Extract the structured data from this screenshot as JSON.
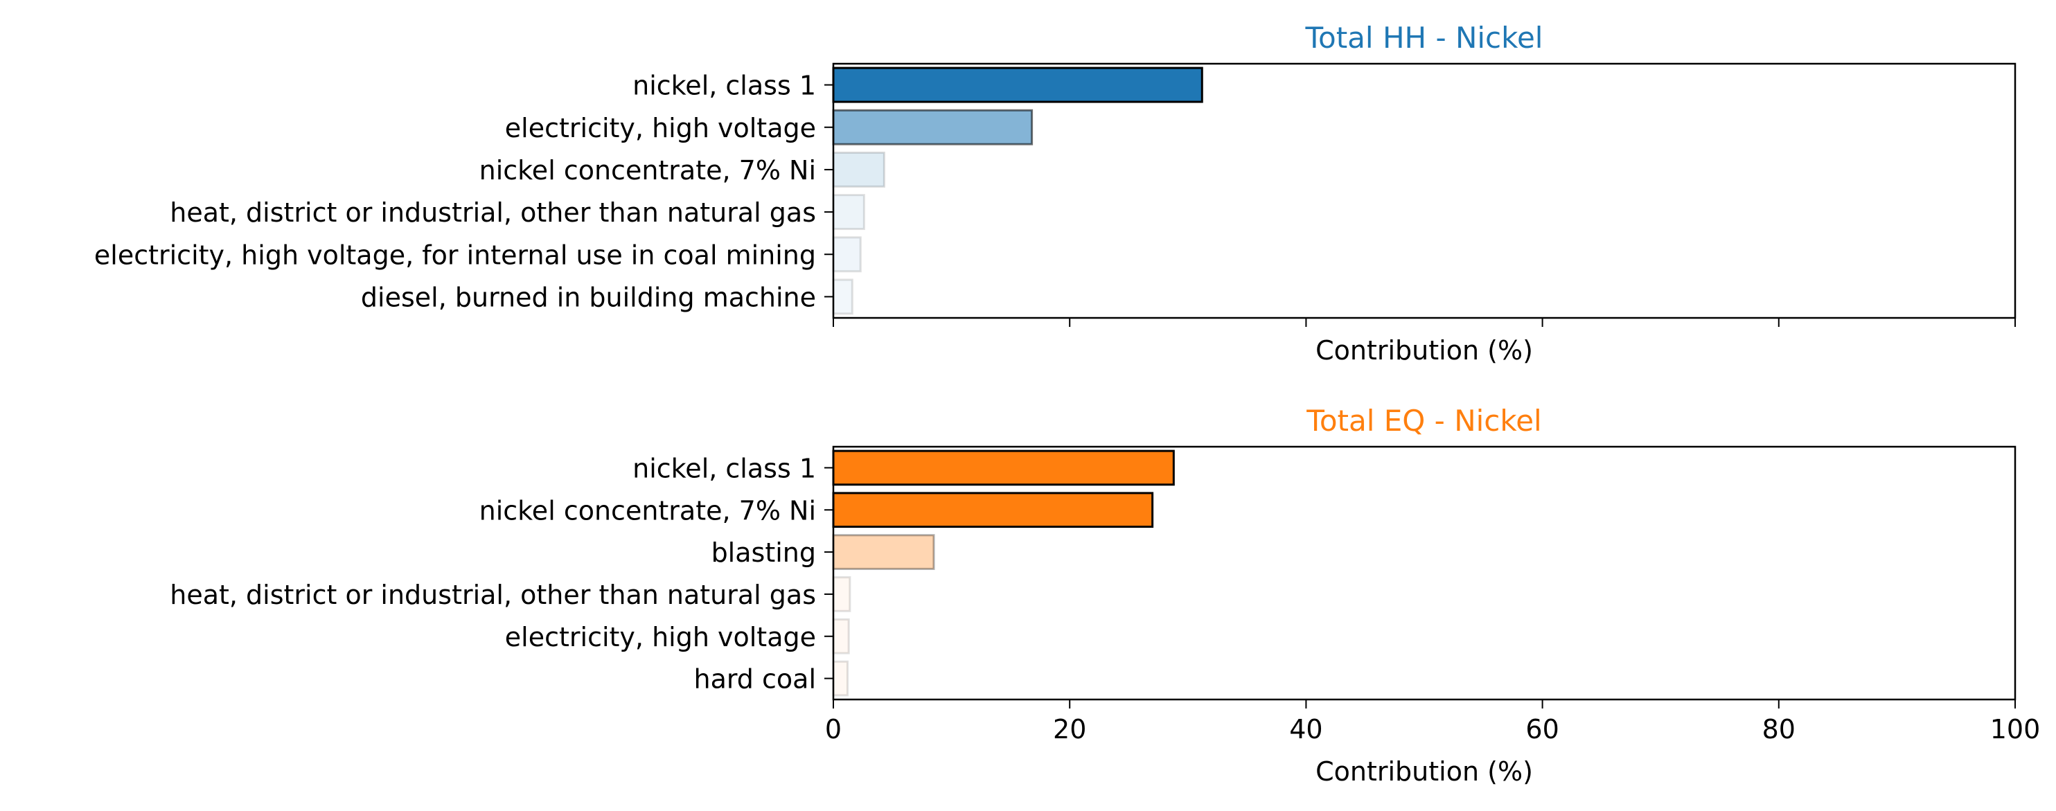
{
  "chart_data": [
    {
      "type": "bar",
      "orientation": "horizontal",
      "title": "Total HH - Nickel",
      "title_color": "#1f77b4",
      "base_color": "#1f77b4",
      "xlabel": "Contribution (%)",
      "ylabel": "",
      "xlim": [
        0,
        100
      ],
      "xticks": [
        0,
        20,
        40,
        60,
        80,
        100
      ],
      "show_xtick_labels": false,
      "grid": false,
      "categories": [
        "nickel, class 1",
        "electricity, high voltage",
        "nickel concentrate, 7% Ni",
        "heat, district or industrial, other than natural gas",
        "electricity, high voltage, for internal use in coal mining",
        "diesel, burned in building machine"
      ],
      "values": [
        31.2,
        16.8,
        4.3,
        2.6,
        2.3,
        1.6
      ],
      "alpha": [
        1.0,
        0.55,
        0.14,
        0.08,
        0.07,
        0.06
      ]
    },
    {
      "type": "bar",
      "orientation": "horizontal",
      "title": "Total EQ - Nickel",
      "title_color": "#ff7f0e",
      "base_color": "#ff7f0e",
      "xlabel": "Contribution (%)",
      "ylabel": "",
      "xlim": [
        0,
        100
      ],
      "xticks": [
        0,
        20,
        40,
        60,
        80,
        100
      ],
      "xtick_labels": [
        "0",
        "20",
        "40",
        "60",
        "80",
        "100"
      ],
      "show_xtick_labels": true,
      "grid": false,
      "categories": [
        "nickel, class 1",
        "nickel concentrate, 7% Ni",
        "blasting",
        "heat, district or industrial, other than natural gas",
        "electricity, high voltage",
        "hard coal"
      ],
      "values": [
        28.8,
        27.0,
        8.5,
        1.4,
        1.3,
        1.2
      ],
      "alpha": [
        1.0,
        1.0,
        0.32,
        0.05,
        0.05,
        0.05
      ]
    }
  ]
}
